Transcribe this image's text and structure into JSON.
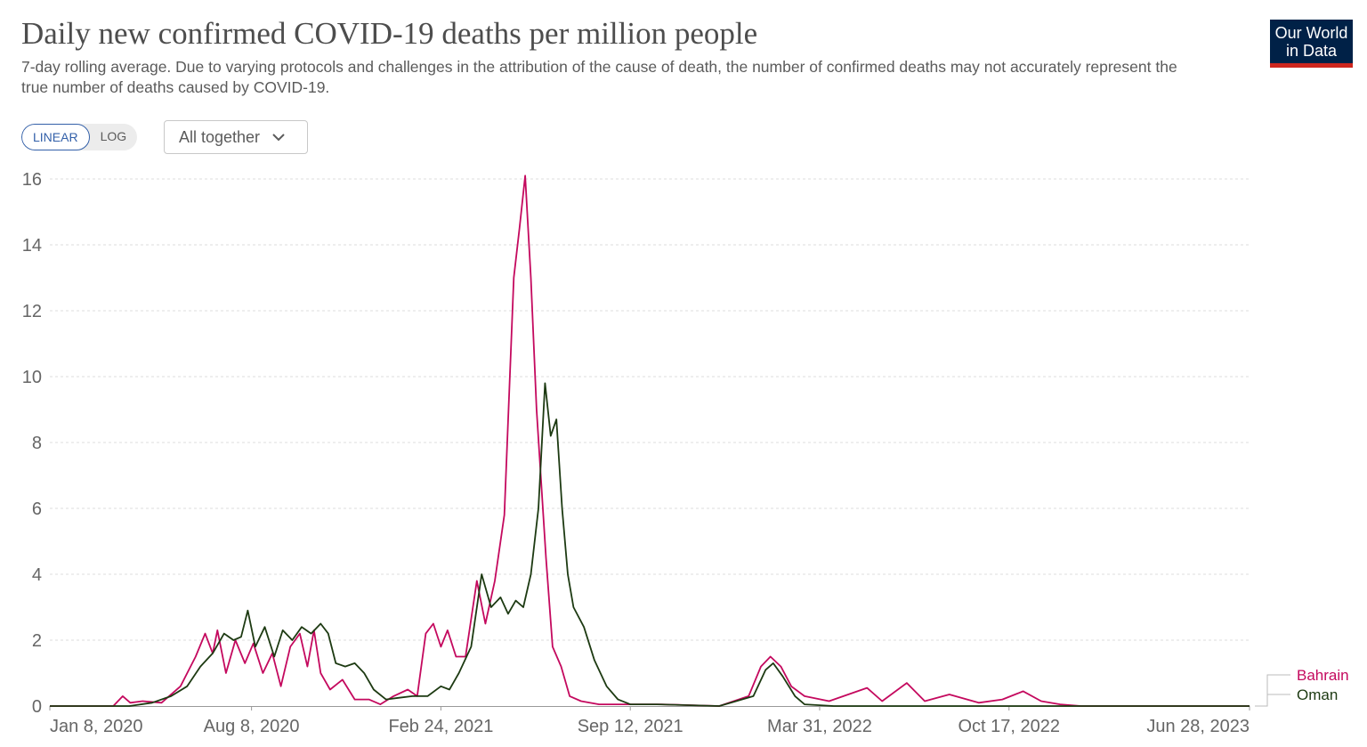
{
  "header": {
    "title": "Daily new confirmed COVID-19 deaths per million people",
    "subtitle": "7-day rolling average. Due to varying protocols and challenges in the attribution of the cause of death, the number of confirmed deaths may not accurately represent the true number of deaths caused by COVID-19.",
    "logo_line1": "Our World",
    "logo_line2": "in Data"
  },
  "controls": {
    "linear_label": "LINEAR",
    "log_label": "LOG",
    "active_scale": "linear",
    "dropdown_value": "All together",
    "dropdown_icon": "chevron-down-icon"
  },
  "colors": {
    "Bahrain": "#c4095e",
    "Oman": "#1d3a12",
    "grid": "#dddddd",
    "logo_bg": "#002147",
    "logo_bar": "#ce261e"
  },
  "chart_data": {
    "type": "line",
    "title": "Daily new confirmed COVID-19 deaths per million people",
    "xlabel": "",
    "ylabel": "",
    "x_range": [
      "2020-01-08",
      "2023-06-28"
    ],
    "ylim": [
      0,
      16
    ],
    "y_ticks": [
      0,
      2,
      4,
      6,
      8,
      10,
      12,
      14,
      16
    ],
    "y_tick_labels": [
      "0",
      "2",
      "4",
      "6",
      "8",
      "10",
      "12",
      "14",
      "16"
    ],
    "x_ticks": [
      "2020-01-08",
      "2020-08-08",
      "2021-02-24",
      "2021-09-12",
      "2022-03-31",
      "2022-10-17",
      "2023-06-28"
    ],
    "x_tick_labels": [
      "Jan 8, 2020",
      "Aug 8, 2020",
      "Feb 24, 2021",
      "Sep 12, 2021",
      "Mar 31, 2022",
      "Oct 17, 2022",
      "Jun 28, 2023"
    ],
    "grid": "horizontal dashed",
    "legend": "right, at line ends",
    "series": [
      {
        "name": "Bahrain",
        "color": "#c4095e",
        "points": [
          [
            "2020-01-08",
            0
          ],
          [
            "2020-03-15",
            0
          ],
          [
            "2020-03-25",
            0.3
          ],
          [
            "2020-04-02",
            0.1
          ],
          [
            "2020-04-15",
            0.15
          ],
          [
            "2020-05-05",
            0.1
          ],
          [
            "2020-05-25",
            0.6
          ],
          [
            "2020-06-10",
            1.5
          ],
          [
            "2020-06-20",
            2.2
          ],
          [
            "2020-06-28",
            1.6
          ],
          [
            "2020-07-03",
            2.3
          ],
          [
            "2020-07-12",
            1.0
          ],
          [
            "2020-07-22",
            2.0
          ],
          [
            "2020-08-01",
            1.3
          ],
          [
            "2020-08-10",
            1.9
          ],
          [
            "2020-08-20",
            1.0
          ],
          [
            "2020-08-30",
            1.6
          ],
          [
            "2020-09-08",
            0.6
          ],
          [
            "2020-09-18",
            1.8
          ],
          [
            "2020-09-28",
            2.2
          ],
          [
            "2020-10-06",
            1.2
          ],
          [
            "2020-10-13",
            2.3
          ],
          [
            "2020-10-20",
            1.0
          ],
          [
            "2020-10-30",
            0.5
          ],
          [
            "2020-11-12",
            0.8
          ],
          [
            "2020-11-25",
            0.2
          ],
          [
            "2020-12-10",
            0.2
          ],
          [
            "2020-12-22",
            0.05
          ],
          [
            "2021-01-05",
            0.3
          ],
          [
            "2021-01-20",
            0.5
          ],
          [
            "2021-01-30",
            0.3
          ],
          [
            "2021-02-08",
            2.2
          ],
          [
            "2021-02-16",
            2.5
          ],
          [
            "2021-02-24",
            1.8
          ],
          [
            "2021-03-03",
            2.3
          ],
          [
            "2021-03-12",
            1.5
          ],
          [
            "2021-03-22",
            1.5
          ],
          [
            "2021-04-03",
            3.8
          ],
          [
            "2021-04-12",
            2.5
          ],
          [
            "2021-04-22",
            3.8
          ],
          [
            "2021-05-02",
            5.8
          ],
          [
            "2021-05-12",
            13.0
          ],
          [
            "2021-05-18",
            14.5
          ],
          [
            "2021-05-24",
            16.1
          ],
          [
            "2021-05-30",
            13.0
          ],
          [
            "2021-06-05",
            9.0
          ],
          [
            "2021-06-15",
            4.5
          ],
          [
            "2021-06-22",
            1.8
          ],
          [
            "2021-07-01",
            1.2
          ],
          [
            "2021-07-10",
            0.3
          ],
          [
            "2021-07-22",
            0.15
          ],
          [
            "2021-08-10",
            0.05
          ],
          [
            "2021-09-01",
            0.05
          ],
          [
            "2021-10-15",
            0.05
          ],
          [
            "2021-12-15",
            0
          ],
          [
            "2022-01-15",
            0.3
          ],
          [
            "2022-01-28",
            1.2
          ],
          [
            "2022-02-07",
            1.5
          ],
          [
            "2022-02-18",
            1.2
          ],
          [
            "2022-03-01",
            0.6
          ],
          [
            "2022-03-15",
            0.3
          ],
          [
            "2022-04-10",
            0.15
          ],
          [
            "2022-05-20",
            0.55
          ],
          [
            "2022-06-05",
            0.15
          ],
          [
            "2022-07-01",
            0.7
          ],
          [
            "2022-07-20",
            0.15
          ],
          [
            "2022-08-15",
            0.35
          ],
          [
            "2022-09-15",
            0.1
          ],
          [
            "2022-10-10",
            0.2
          ],
          [
            "2022-11-01",
            0.45
          ],
          [
            "2022-11-20",
            0.15
          ],
          [
            "2022-12-10",
            0.05
          ],
          [
            "2023-01-01",
            0
          ],
          [
            "2023-06-28",
            0
          ]
        ]
      },
      {
        "name": "Oman",
        "color": "#1d3a12",
        "points": [
          [
            "2020-01-08",
            0
          ],
          [
            "2020-04-01",
            0
          ],
          [
            "2020-04-25",
            0.1
          ],
          [
            "2020-05-15",
            0.3
          ],
          [
            "2020-06-01",
            0.6
          ],
          [
            "2020-06-15",
            1.2
          ],
          [
            "2020-06-28",
            1.6
          ],
          [
            "2020-07-10",
            2.2
          ],
          [
            "2020-07-20",
            2.0
          ],
          [
            "2020-07-28",
            2.1
          ],
          [
            "2020-08-04",
            2.9
          ],
          [
            "2020-08-12",
            1.8
          ],
          [
            "2020-08-22",
            2.4
          ],
          [
            "2020-09-01",
            1.5
          ],
          [
            "2020-09-10",
            2.3
          ],
          [
            "2020-09-20",
            2.0
          ],
          [
            "2020-09-30",
            2.4
          ],
          [
            "2020-10-10",
            2.2
          ],
          [
            "2020-10-20",
            2.5
          ],
          [
            "2020-10-28",
            2.2
          ],
          [
            "2020-11-05",
            1.3
          ],
          [
            "2020-11-15",
            1.2
          ],
          [
            "2020-11-25",
            1.3
          ],
          [
            "2020-12-05",
            1.0
          ],
          [
            "2020-12-15",
            0.5
          ],
          [
            "2020-12-28",
            0.2
          ],
          [
            "2021-01-10",
            0.25
          ],
          [
            "2021-01-25",
            0.3
          ],
          [
            "2021-02-10",
            0.3
          ],
          [
            "2021-02-24",
            0.6
          ],
          [
            "2021-03-05",
            0.5
          ],
          [
            "2021-03-15",
            1.0
          ],
          [
            "2021-03-28",
            1.8
          ],
          [
            "2021-04-08",
            4.0
          ],
          [
            "2021-04-18",
            3.0
          ],
          [
            "2021-04-28",
            3.3
          ],
          [
            "2021-05-06",
            2.8
          ],
          [
            "2021-05-14",
            3.2
          ],
          [
            "2021-05-22",
            3.0
          ],
          [
            "2021-05-30",
            4.0
          ],
          [
            "2021-06-07",
            6.0
          ],
          [
            "2021-06-14",
            9.8
          ],
          [
            "2021-06-20",
            8.2
          ],
          [
            "2021-06-26",
            8.7
          ],
          [
            "2021-07-02",
            6.0
          ],
          [
            "2021-07-08",
            4.0
          ],
          [
            "2021-07-14",
            3.0
          ],
          [
            "2021-07-25",
            2.4
          ],
          [
            "2021-08-05",
            1.4
          ],
          [
            "2021-08-18",
            0.6
          ],
          [
            "2021-08-30",
            0.2
          ],
          [
            "2021-09-12",
            0.05
          ],
          [
            "2021-10-10",
            0.05
          ],
          [
            "2021-12-15",
            0
          ],
          [
            "2022-01-20",
            0.3
          ],
          [
            "2022-02-02",
            1.1
          ],
          [
            "2022-02-10",
            1.3
          ],
          [
            "2022-02-20",
            0.9
          ],
          [
            "2022-03-05",
            0.3
          ],
          [
            "2022-03-15",
            0.05
          ],
          [
            "2022-04-15",
            0
          ],
          [
            "2023-06-28",
            0
          ]
        ]
      }
    ]
  }
}
